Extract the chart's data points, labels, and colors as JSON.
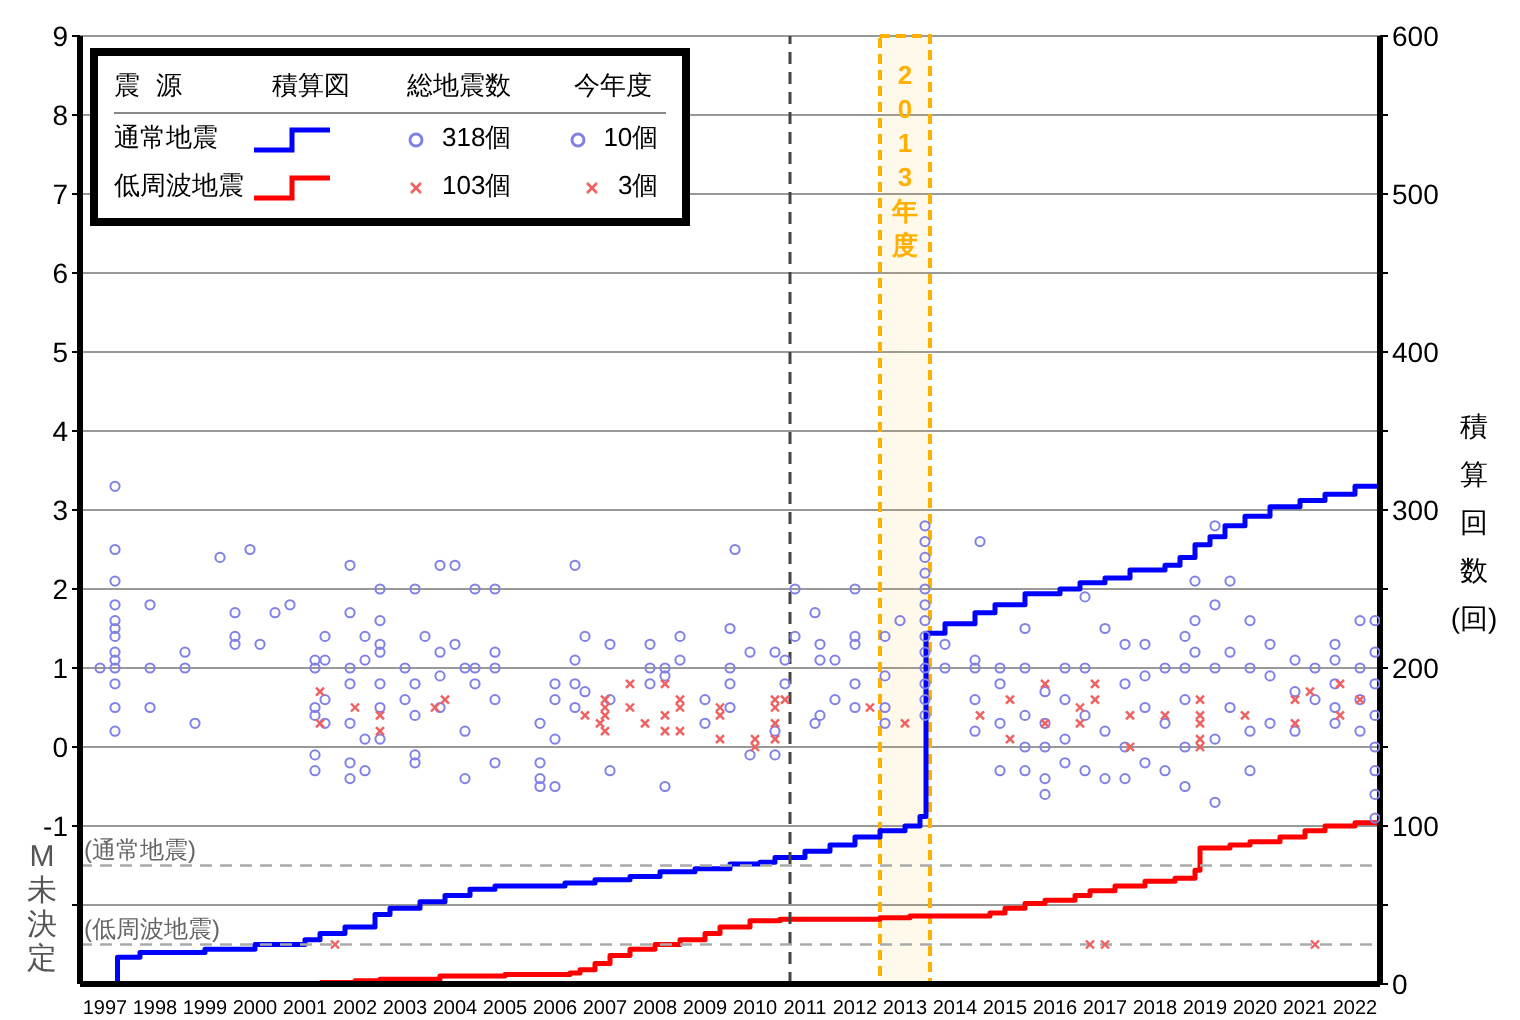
{
  "chart_data": {
    "type": "scatter",
    "legend_title": "震源",
    "annotations": [
      "積算図",
      "総地震数",
      "今年度",
      "318個",
      "10個",
      "103個",
      "3個",
      "M未決定"
    ],
    "y2label": "積算回数(回)",
    "xlim": [
      1997,
      2023
    ],
    "xticks": [
      {
        "value": 1997.5,
        "label": "1997"
      },
      {
        "value": 1998.5,
        "label": "1998"
      },
      {
        "value": 1999.5,
        "label": "1999"
      },
      {
        "value": 2000.5,
        "label": "2000"
      },
      {
        "value": 2001.5,
        "label": "2001"
      },
      {
        "value": 2002.5,
        "label": "2002"
      },
      {
        "value": 2003.5,
        "label": "2003"
      },
      {
        "value": 2004.5,
        "label": "2004"
      },
      {
        "value": 2005.5,
        "label": "2005"
      },
      {
        "value": 2006.5,
        "label": "2006"
      },
      {
        "value": 2007.5,
        "label": "2007"
      },
      {
        "value": 2008.5,
        "label": "2008"
      },
      {
        "value": 2009.5,
        "label": "2009"
      },
      {
        "value": 2010.5,
        "label": "2010"
      },
      {
        "value": 2011.5,
        "label": "2011"
      },
      {
        "value": 2012.5,
        "label": "2012"
      },
      {
        "value": 2013.5,
        "label": "2013"
      },
      {
        "value": 2014.5,
        "label": "2014"
      },
      {
        "value": 2015.5,
        "label": "2015"
      },
      {
        "value": 2016.5,
        "label": "2016"
      },
      {
        "value": 2017.5,
        "label": "2017"
      },
      {
        "value": 2018.5,
        "label": "2018"
      },
      {
        "value": 2019.5,
        "label": "2019"
      },
      {
        "value": 2020.5,
        "label": "2020"
      },
      {
        "value": 2021.5,
        "label": "2021"
      },
      {
        "value": 2022.5,
        "label": "2022"
      }
    ],
    "ylim": [
      -3,
      9
    ],
    "yticks": [
      {
        "value": -2,
        "label": null
      },
      -1,
      0,
      1,
      2,
      3,
      4,
      5,
      6,
      7,
      8,
      9
    ],
    "y2lim": [
      0,
      600
    ],
    "y2ticks": [
      0,
      {
        "value": 50,
        "label": null
      },
      100,
      {
        "value": 150,
        "label": null
      },
      200,
      {
        "value": 250,
        "label": null
      },
      300,
      {
        "value": 350,
        "label": null
      },
      400,
      {
        "value": 450,
        "label": null
      },
      500,
      {
        "value": 550,
        "label": null
      },
      600
    ],
    "grid": "y",
    "legend": "top left",
    "ref_lines": [
      {
        "axis": "x",
        "value": 2011.2,
        "color": "#444444",
        "line_style": "dashed"
      },
      {
        "axis": "y",
        "value": -1.5,
        "label": "(通常地震)",
        "color": "#aaaaaa",
        "line_style": "dashed"
      },
      {
        "axis": "y",
        "value": -2.5,
        "label": "(低周波地震)",
        "color": "#aaaaaa",
        "line_style": "dashed"
      }
    ],
    "bands": [
      {
        "axis": "x",
        "from": 2013,
        "to": 2014,
        "label": "2013年度",
        "color": "#ffb000"
      }
    ],
    "series": [
      {
        "marker": "circle",
        "color": "#8080e8",
        "x": [
          1997.7,
          1997.7,
          1997.7,
          1997.7,
          1997.7,
          1997.7,
          1997.7,
          1997.7,
          1997.7,
          1997.7,
          1997.7,
          1997.7,
          1997.7,
          1997.4,
          1998.4,
          1998.4,
          1998.4,
          1999.1,
          1999.1,
          1999.3,
          1999.8,
          2000.1,
          2000.1,
          2000.1,
          2000.4,
          2000.6,
          2000.9,
          2001.2,
          2001.7,
          2001.7,
          2001.7,
          2001.7,
          2001.7,
          2001.7,
          2001.9,
          2001.9,
          2001.9,
          2001.9,
          2002.4,
          2002.4,
          2002.4,
          2002.4,
          2002.4,
          2002.4,
          2002.4,
          2002.7,
          2002.7,
          2002.7,
          2002.7,
          2003.0,
          2003.0,
          2003.0,
          2003.0,
          2003.0,
          2003.0,
          2003.0,
          2003.5,
          2003.5,
          2003.7,
          2003.7,
          2003.7,
          2003.7,
          2003.7,
          2003.9,
          2004.2,
          2004.2,
          2004.2,
          2004.2,
          2004.5,
          2004.5,
          2004.7,
          2004.7,
          2004.7,
          2004.9,
          2004.9,
          2004.9,
          2005.3,
          2005.3,
          2005.3,
          2005.3,
          2005.3,
          2006.2,
          2006.2,
          2006.2,
          2006.2,
          2006.5,
          2006.5,
          2006.5,
          2006.5,
          2006.9,
          2006.9,
          2006.9,
          2006.9,
          2007.1,
          2007.1,
          2007.6,
          2007.6,
          2007.6,
          2008.4,
          2008.4,
          2008.4,
          2008.7,
          2008.7,
          2008.7,
          2009.0,
          2009.0,
          2009.5,
          2009.5,
          2010.0,
          2010.0,
          2010.0,
          2010.0,
          2010.1,
          2010.4,
          2010.4,
          2010.9,
          2010.9,
          2010.9,
          2011.1,
          2011.1,
          2011.3,
          2011.3,
          2011.7,
          2011.7,
          2011.8,
          2011.8,
          2011.8,
          2012.1,
          2012.1,
          2012.5,
          2012.5,
          2012.5,
          2012.5,
          2012.5,
          2013.1,
          2013.1,
          2013.1,
          2013.1,
          2013.4,
          2013.9,
          2013.9,
          2013.9,
          2013.9,
          2013.9,
          2013.9,
          2013.9,
          2013.9,
          2013.9,
          2013.9,
          2013.9,
          2013.9,
          2013.9,
          2014.3,
          2014.3,
          2014.9,
          2014.9,
          2014.9,
          2014.9,
          2015.0,
          2015.4,
          2015.4,
          2015.4,
          2015.4,
          2015.9,
          2015.9,
          2015.9,
          2015.9,
          2015.9,
          2016.3,
          2016.3,
          2016.3,
          2016.3,
          2016.3,
          2016.7,
          2016.7,
          2016.7,
          2016.7,
          2017.1,
          2017.1,
          2017.1,
          2017.1,
          2017.5,
          2017.5,
          2017.5,
          2017.9,
          2017.9,
          2017.9,
          2017.9,
          2018.3,
          2018.3,
          2018.3,
          2018.3,
          2018.7,
          2018.7,
          2018.7,
          2019.1,
          2019.1,
          2019.1,
          2019.1,
          2019.1,
          2019.3,
          2019.3,
          2019.3,
          2019.7,
          2019.7,
          2019.7,
          2019.7,
          2019.7,
          2020.0,
          2020.0,
          2020.0,
          2020.4,
          2020.4,
          2020.4,
          2020.4,
          2020.8,
          2020.8,
          2020.8,
          2021.3,
          2021.3,
          2021.3,
          2021.7,
          2021.7,
          2022.1,
          2022.1,
          2022.1,
          2022.1,
          2022.1,
          2022.6,
          2022.6,
          2022.6,
          2022.6,
          2022.9,
          2022.9,
          2022.9,
          2022.9,
          2022.9,
          2022.9,
          2022.9,
          2022.9
        ],
        "values": [
          3.3,
          2.5,
          2.1,
          1.8,
          1.6,
          1.5,
          1.4,
          1.2,
          1.1,
          1.0,
          0.8,
          0.5,
          0.2,
          1.0,
          1.8,
          1.0,
          0.5,
          1.2,
          1.0,
          0.3,
          2.4,
          1.7,
          1.4,
          1.3,
          2.5,
          1.3,
          1.7,
          1.8,
          1.0,
          1.1,
          0.5,
          0.4,
          -0.1,
          -0.3,
          1.4,
          1.1,
          0.6,
          0.3,
          2.3,
          1.7,
          1.0,
          0.8,
          0.3,
          -0.2,
          -0.4,
          1.4,
          1.1,
          0.1,
          -0.3,
          2.0,
          1.6,
          1.3,
          1.2,
          0.8,
          0.5,
          0.1,
          1.0,
          0.6,
          2.0,
          0.8,
          0.4,
          -0.1,
          -0.2,
          1.4,
          2.3,
          1.2,
          0.9,
          0.5,
          2.3,
          1.3,
          1.0,
          0.2,
          -0.4,
          2.0,
          1.0,
          0.8,
          2.0,
          1.2,
          1.0,
          0.6,
          -0.2,
          0.3,
          -0.2,
          -0.4,
          -0.5,
          0.8,
          0.6,
          0.1,
          -0.5,
          2.3,
          1.1,
          0.8,
          0.5,
          1.4,
          0.7,
          1.3,
          0.6,
          -0.3,
          1.3,
          1.0,
          0.8,
          1.0,
          0.9,
          -0.5,
          1.4,
          1.1,
          0.6,
          0.3,
          1.5,
          1.0,
          0.8,
          0.5,
          2.5,
          1.2,
          -0.1,
          1.2,
          0.2,
          -0.1,
          1.1,
          0.8,
          2.0,
          1.4,
          1.7,
          0.3,
          1.3,
          1.1,
          0.4,
          1.1,
          0.6,
          2.0,
          1.4,
          1.3,
          0.8,
          0.5,
          1.4,
          0.9,
          0.5,
          0.3,
          1.6,
          2.8,
          2.6,
          2.4,
          2.2,
          2.0,
          1.8,
          1.6,
          1.4,
          1.2,
          1.0,
          0.8,
          0.6,
          0.4,
          1.3,
          1.0,
          1.1,
          1.0,
          0.6,
          0.2,
          2.6,
          1.0,
          0.8,
          0.3,
          -0.3,
          1.5,
          1.0,
          0.4,
          0.0,
          -0.3,
          0.7,
          0.3,
          0.0,
          -0.4,
          -0.6,
          1.0,
          0.6,
          0.1,
          -0.2,
          1.9,
          1.0,
          0.4,
          -0.3,
          1.5,
          0.2,
          -0.4,
          1.3,
          0.8,
          0.0,
          -0.4,
          1.3,
          0.9,
          0.5,
          -0.2,
          1.0,
          0.3,
          -0.3,
          1.4,
          1.0,
          0.6,
          0.0,
          -0.5,
          2.1,
          1.6,
          1.2,
          2.8,
          1.8,
          1.0,
          0.1,
          -0.7,
          2.1,
          1.2,
          0.5,
          1.6,
          1.0,
          0.2,
          -0.3,
          1.3,
          0.9,
          0.3,
          1.1,
          0.7,
          0.2,
          1.0,
          0.6,
          1.3,
          1.1,
          0.8,
          0.5,
          0.3,
          1.6,
          1.0,
          0.6,
          0.2,
          1.6,
          1.2,
          0.8,
          0.4,
          0.0,
          -0.3,
          -0.6,
          -0.9
        ]
      },
      {
        "marker": "cross",
        "color": "#f06060",
        "x": [
          2001.8,
          2001.8,
          2002.5,
          2003.0,
          2003.0,
          2004.1,
          2004.3,
          2007.1,
          2007.4,
          2007.5,
          2007.5,
          2007.5,
          2007.5,
          2008.0,
          2008.0,
          2008.3,
          2008.7,
          2008.7,
          2008.7,
          2009.0,
          2009.0,
          2009.0,
          2009.8,
          2009.8,
          2009.8,
          2010.5,
          2010.5,
          2010.9,
          2010.9,
          2010.9,
          2010.9,
          2011.1,
          2012.8,
          2013.5,
          2015.0,
          2015.6,
          2015.6,
          2016.3,
          2016.3,
          2017.0,
          2017.0,
          2017.3,
          2017.3,
          2018.0,
          2018.0,
          2018.7,
          2019.4,
          2019.4,
          2019.4,
          2019.4,
          2019.4,
          2020.3,
          2021.3,
          2021.3,
          2021.6,
          2022.2,
          2022.2,
          2022.6,
          2002.1,
          2017.2,
          2017.5,
          2021.7
        ],
        "values": [
          0.7,
          0.3,
          0.5,
          0.4,
          0.2,
          0.5,
          0.6,
          0.4,
          0.3,
          0.6,
          0.5,
          0.4,
          0.2,
          0.8,
          0.5,
          0.3,
          0.8,
          0.4,
          0.2,
          0.6,
          0.5,
          0.2,
          0.5,
          0.4,
          0.1,
          0.1,
          0.0,
          0.6,
          0.5,
          0.3,
          0.1,
          0.6,
          0.5,
          0.3,
          0.4,
          0.6,
          0.1,
          0.8,
          0.3,
          0.5,
          0.3,
          0.8,
          0.6,
          0.4,
          0.0,
          0.4,
          0.6,
          0.4,
          0.3,
          0.1,
          0.0,
          0.4,
          0.6,
          0.3,
          0.7,
          0.8,
          0.4,
          0.6,
          -2.5,
          -2.5,
          -2.5,
          -2.5
        ]
      },
      {
        "name": "通常地震",
        "type": "step",
        "axis": "y2",
        "color": "#0000ff",
        "x": [
          1997.7,
          1997.75,
          1998.2,
          1999.5,
          2000.5,
          2001.5,
          2001.8,
          2002.3,
          2002.9,
          2003.2,
          2003.8,
          2004.3,
          2004.8,
          2005.3,
          2006.7,
          2007.3,
          2008.0,
          2008.6,
          2009.3,
          2010.0,
          2010.6,
          2010.9,
          2011.5,
          2012.0,
          2012.5,
          2013.0,
          2013.5,
          2013.8,
          2013.92,
          2014.3,
          2014.9,
          2015.3,
          2015.9,
          2016.6,
          2017.0,
          2017.5,
          2018.0,
          2018.7,
          2019.0,
          2019.3,
          2019.6,
          2019.9,
          2020.3,
          2020.8,
          2021.4,
          2021.9,
          2022.5,
          2023
        ],
        "values": [
          0,
          17,
          20,
          22,
          25,
          28,
          32,
          36,
          44,
          48,
          52,
          56,
          60,
          62,
          64,
          66,
          68,
          71,
          73,
          76,
          77,
          80,
          84,
          88,
          93,
          97,
          100,
          106,
          222,
          228,
          235,
          240,
          247,
          250,
          254,
          257,
          262,
          265,
          270,
          278,
          283,
          290,
          296,
          302,
          306,
          310,
          315,
          318
        ]
      },
      {
        "name": "低周波地震",
        "type": "step",
        "axis": "y2",
        "color": "#ff0000",
        "x": [
          2001.8,
          2002.5,
          2003.0,
          2004.2,
          2005.5,
          2006.8,
          2007.0,
          2007.3,
          2007.6,
          2008.0,
          2008.5,
          2009.0,
          2009.5,
          2009.8,
          2010.4,
          2011.0,
          2013.0,
          2013.6,
          2015.2,
          2015.5,
          2015.9,
          2016.3,
          2016.9,
          2017.2,
          2017.7,
          2018.3,
          2018.9,
          2019.3,
          2019.4,
          2020.0,
          2020.4,
          2021.0,
          2021.5,
          2021.9,
          2022.5,
          2023
        ],
        "values": [
          1,
          2,
          3,
          5,
          6,
          7,
          9,
          13,
          18,
          22,
          25,
          28,
          32,
          36,
          40,
          41,
          42,
          43,
          45,
          48,
          51,
          53,
          56,
          59,
          62,
          65,
          67,
          72,
          86,
          88,
          90,
          93,
          97,
          100,
          102,
          103
        ]
      }
    ]
  }
}
